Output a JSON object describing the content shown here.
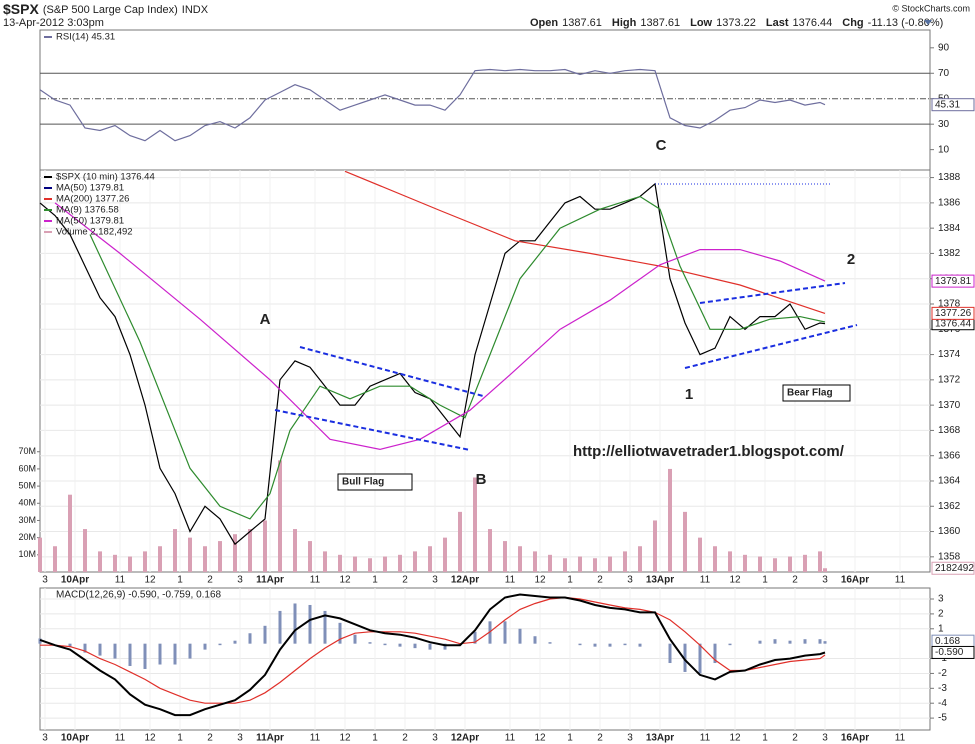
{
  "header": {
    "symbol": "$SPX",
    "name": "(S&P 500 Large Cap Index)",
    "exchange": "INDX",
    "date": "13-Apr-2012 3:03pm",
    "source": "© StockCharts.com",
    "quote": [
      {
        "label": "Open",
        "value": "1387.61"
      },
      {
        "label": "High",
        "value": "1387.61"
      },
      {
        "label": "Low",
        "value": "1373.22"
      },
      {
        "label": "Last",
        "value": "1376.44"
      },
      {
        "label": "Chg",
        "value": "-11.13 (-0.80%)"
      }
    ]
  },
  "chart_data": [
    {
      "type": "line",
      "xlim": [
        0,
        178
      ],
      "ylim": [
        -6,
        104
      ],
      "yticks": [
        10,
        30,
        50,
        70,
        90
      ],
      "levels": [
        70,
        50,
        30
      ],
      "x": [
        0,
        3,
        6,
        9,
        12,
        15,
        18,
        21,
        24,
        27,
        30,
        33,
        36,
        39,
        42,
        45,
        48,
        51,
        54,
        57,
        60,
        63,
        66,
        69,
        72,
        75,
        78,
        81,
        84,
        87,
        90,
        93,
        96,
        99,
        102,
        105,
        108,
        111,
        114,
        117,
        120,
        123,
        126,
        129,
        132,
        135,
        138,
        141,
        144,
        147,
        150,
        153,
        156,
        157
      ],
      "series": [
        {
          "name": "RSI(14)",
          "legend": "RSI(14) 45.31",
          "color": "#6e6e9e",
          "tag": true,
          "values": [
            57,
            49,
            45,
            27,
            25,
            29,
            21,
            17,
            25,
            17,
            21,
            29,
            32,
            27,
            35,
            49,
            55,
            61,
            57,
            49,
            41,
            45,
            49,
            53,
            49,
            45,
            45,
            41,
            53,
            72,
            73,
            72,
            73,
            72,
            72,
            73,
            69,
            72,
            70,
            72,
            73,
            72,
            35,
            29,
            27,
            33,
            41,
            43,
            49,
            47,
            49,
            45,
            47,
            45.31
          ]
        }
      ]
    },
    {
      "type": "line",
      "xlim": [
        0,
        178
      ],
      "ylim": [
        1356.8,
        1388.6
      ],
      "grid": true,
      "yticks": [
        1358,
        1360,
        1362,
        1364,
        1366,
        1368,
        1370,
        1372,
        1374,
        1376,
        1378,
        1380,
        1382,
        1384,
        1386,
        1388
      ],
      "y2lim": [
        0,
        234000000
      ],
      "y2ticks": [
        {
          "value": 10000000,
          "label": "10M"
        },
        {
          "value": 20000000,
          "label": "20M"
        },
        {
          "value": 30000000,
          "label": "30M"
        },
        {
          "value": 40000000,
          "label": "40M"
        },
        {
          "value": 50000000,
          "label": "50M"
        },
        {
          "value": 60000000,
          "label": "60M"
        },
        {
          "value": 70000000,
          "label": "70M"
        }
      ],
      "xticks": [
        {
          "value": 1,
          "label": "3"
        },
        {
          "value": 7,
          "label": "10Apr"
        },
        {
          "value": 16,
          "label": "11"
        },
        {
          "value": 22,
          "label": "12"
        },
        {
          "value": 28,
          "label": "1"
        },
        {
          "value": 34,
          "label": "2"
        },
        {
          "value": 40,
          "label": "3"
        },
        {
          "value": 46,
          "label": "11Apr"
        },
        {
          "value": 55,
          "label": "11"
        },
        {
          "value": 61,
          "label": "12"
        },
        {
          "value": 67,
          "label": "1"
        },
        {
          "value": 73,
          "label": "2"
        },
        {
          "value": 79,
          "label": "3"
        },
        {
          "value": 85,
          "label": "12Apr"
        },
        {
          "value": 94,
          "label": "11"
        },
        {
          "value": 100,
          "label": "12"
        },
        {
          "value": 106,
          "label": "1"
        },
        {
          "value": 112,
          "label": "2"
        },
        {
          "value": 118,
          "label": "3"
        },
        {
          "value": 124,
          "label": "13Apr"
        },
        {
          "value": 133,
          "label": "11"
        },
        {
          "value": 139,
          "label": "12"
        },
        {
          "value": 145,
          "label": "1"
        },
        {
          "value": 151,
          "label": "2"
        },
        {
          "value": 157,
          "label": "3"
        },
        {
          "value": 163,
          "label": "16Apr"
        },
        {
          "value": 172,
          "label": "11"
        }
      ],
      "annotations": [
        "A",
        "B",
        "C",
        "1",
        "2",
        "Bull Flag",
        "Bear Flag",
        "http://elliotwavetrader1.blogspot.com/"
      ],
      "series": [
        {
          "name": "$SPX (10 min)",
          "legend": "$SPX (10 min) 1376.44",
          "color": "#000000",
          "tag": true,
          "x": [
            0,
            3,
            6,
            9,
            12,
            15,
            18,
            21,
            24,
            27,
            30,
            33,
            36,
            39,
            42,
            45,
            48,
            51,
            54,
            57,
            60,
            63,
            66,
            69,
            72,
            75,
            78,
            81,
            84,
            87,
            90,
            93,
            96,
            99,
            102,
            105,
            108,
            111,
            114,
            117,
            120,
            123,
            126,
            129,
            132,
            135,
            138,
            141,
            144,
            147,
            150,
            153,
            156,
            157
          ],
          "values": [
            1386,
            1385,
            1383.5,
            1381,
            1378.5,
            1377,
            1374,
            1370,
            1365,
            1363,
            1360,
            1362,
            1361,
            1359,
            1360,
            1361,
            1372,
            1373.5,
            1373,
            1371.5,
            1370,
            1370,
            1371.5,
            1372,
            1372.5,
            1371,
            1370.5,
            1369,
            1367.5,
            1374,
            1378,
            1382,
            1383,
            1383,
            1384.5,
            1386,
            1386.5,
            1385.5,
            1385.5,
            1386,
            1386.5,
            1387.5,
            1380,
            1376.5,
            1374,
            1374.5,
            1377,
            1376,
            1377,
            1377,
            1378,
            1376,
            1376.5,
            1376.44
          ]
        },
        {
          "name": "MA(50)",
          "legend": "MA(50) 1379.81",
          "color": "#000080"
        },
        {
          "name": "MA(200)",
          "legend": "MA(200) 1377.26",
          "color": "#e0302a",
          "tag": true,
          "x": [
            61,
            80,
            95,
            110,
            124,
            140,
            157
          ],
          "values": [
            1388.5,
            1385.4,
            1383,
            1382,
            1381,
            1379.5,
            1377.26
          ]
        },
        {
          "name": "MA(9)",
          "legend": "MA(9) 1376.58",
          "color": "#2e8b2e",
          "x": [
            10,
            20,
            30,
            36,
            42,
            46,
            50,
            56,
            62,
            68,
            74,
            80,
            85,
            90,
            96,
            104,
            112,
            120,
            124,
            128,
            134,
            140,
            146,
            152,
            157
          ],
          "values": [
            1383.5,
            1375,
            1365,
            1362,
            1361,
            1363,
            1368,
            1371.5,
            1370.5,
            1371.5,
            1371.5,
            1370,
            1369,
            1374,
            1380,
            1384,
            1385.5,
            1386.5,
            1385.5,
            1381,
            1376,
            1376,
            1376.8,
            1377,
            1376.58
          ]
        },
        {
          "name": "MA(50)",
          "legend": "MA(50) 1379.81",
          "color": "#cc22cc",
          "tag": true,
          "x": [
            3,
            16,
            32,
            46,
            58,
            68,
            76,
            86,
            94,
            104,
            114,
            124,
            132,
            140,
            148,
            157
          ],
          "values": [
            1386,
            1382,
            1376.8,
            1372,
            1367.3,
            1366.5,
            1367.3,
            1369.6,
            1372.4,
            1376,
            1378.3,
            1381.1,
            1382.3,
            1382.3,
            1381.4,
            1379.81
          ]
        },
        {
          "name": "Volume",
          "legend": "Volume 2,182,492",
          "color": "#d9a0b4",
          "kind": "bar",
          "axis": "y2",
          "tag": true,
          "x": [
            0,
            3,
            6,
            9,
            12,
            15,
            18,
            21,
            24,
            27,
            30,
            33,
            36,
            39,
            42,
            45,
            48,
            51,
            54,
            57,
            60,
            63,
            66,
            69,
            72,
            75,
            78,
            81,
            84,
            87,
            90,
            93,
            96,
            99,
            102,
            105,
            108,
            111,
            114,
            117,
            120,
            123,
            126,
            129,
            132,
            135,
            138,
            141,
            144,
            147,
            150,
            153,
            156,
            157
          ],
          "values": [
            20000000,
            15000000,
            45000000,
            25000000,
            12000000,
            10000000,
            9000000,
            12000000,
            15000000,
            25000000,
            20000000,
            15000000,
            18000000,
            22000000,
            25000000,
            30000000,
            65000000,
            25000000,
            18000000,
            12000000,
            10000000,
            9000000,
            8000000,
            9000000,
            10000000,
            12000000,
            15000000,
            20000000,
            35000000,
            55000000,
            25000000,
            18000000,
            15000000,
            12000000,
            10000000,
            8000000,
            9000000,
            8000000,
            9000000,
            12000000,
            15000000,
            30000000,
            60000000,
            35000000,
            20000000,
            15000000,
            12000000,
            10000000,
            9000000,
            8000000,
            9000000,
            10000000,
            12000000,
            2182492
          ]
        }
      ]
    },
    {
      "type": "line",
      "xlim": [
        0,
        178
      ],
      "ylim": [
        -5.8,
        3.74
      ],
      "grid": true,
      "yticks": [
        3,
        2,
        1,
        -1,
        -2,
        -3,
        -4,
        -5
      ],
      "xticks": [
        {
          "value": 1,
          "label": "3"
        },
        {
          "value": 7,
          "label": "10Apr"
        },
        {
          "value": 16,
          "label": "11"
        },
        {
          "value": 22,
          "label": "12"
        },
        {
          "value": 28,
          "label": "1"
        },
        {
          "value": 34,
          "label": "2"
        },
        {
          "value": 40,
          "label": "3"
        },
        {
          "value": 46,
          "label": "11Apr"
        },
        {
          "value": 55,
          "label": "11"
        },
        {
          "value": 61,
          "label": "12"
        },
        {
          "value": 67,
          "label": "1"
        },
        {
          "value": 73,
          "label": "2"
        },
        {
          "value": 79,
          "label": "3"
        },
        {
          "value": 85,
          "label": "12Apr"
        },
        {
          "value": 94,
          "label": "11"
        },
        {
          "value": 100,
          "label": "12"
        },
        {
          "value": 106,
          "label": "1"
        },
        {
          "value": 112,
          "label": "2"
        },
        {
          "value": 118,
          "label": "3"
        },
        {
          "value": 124,
          "label": "13Apr"
        },
        {
          "value": 133,
          "label": "11"
        },
        {
          "value": 139,
          "label": "12"
        },
        {
          "value": 145,
          "label": "1"
        },
        {
          "value": 151,
          "label": "2"
        },
        {
          "value": 157,
          "label": "3"
        },
        {
          "value": 163,
          "label": "16Apr"
        },
        {
          "value": 172,
          "label": "11"
        }
      ],
      "legend": "MACD(12,26,9) -0.590, -0.759, 0.168",
      "x": [
        0,
        3,
        6,
        9,
        12,
        15,
        18,
        21,
        24,
        27,
        30,
        33,
        36,
        39,
        42,
        45,
        48,
        51,
        54,
        57,
        60,
        63,
        66,
        69,
        72,
        75,
        78,
        81,
        84,
        87,
        90,
        93,
        96,
        99,
        102,
        105,
        108,
        111,
        114,
        117,
        120,
        123,
        126,
        129,
        132,
        135,
        138,
        141,
        144,
        147,
        150,
        153,
        156,
        157
      ],
      "series": [
        {
          "name": "Histogram",
          "color": "#7f8fb8",
          "kind": "hist",
          "tag": true,
          "values": [
            0.35,
            0,
            -0.2,
            -0.6,
            -0.8,
            -1.0,
            -1.5,
            -1.7,
            -1.4,
            -1.4,
            -1.0,
            -0.4,
            -0.1,
            0.2,
            0.7,
            1.2,
            2.2,
            2.7,
            2.6,
            2.2,
            1.4,
            0.6,
            0.1,
            -0.1,
            -0.2,
            -0.3,
            -0.4,
            -0.4,
            -0.1,
            0.8,
            1.5,
            1.5,
            1.0,
            0.5,
            0.1,
            0,
            -0.1,
            -0.2,
            -0.2,
            -0.1,
            -0.2,
            0,
            -1.3,
            -1.9,
            -2.0,
            -1.3,
            -0.1,
            0,
            0.2,
            0.3,
            0.2,
            0.3,
            0.3,
            0.168
          ]
        },
        {
          "name": "Signal",
          "color": "#e0302a",
          "values": [
            -0.1,
            -0.1,
            -0.2,
            -0.5,
            -1.0,
            -1.4,
            -1.9,
            -2.4,
            -3.0,
            -3.4,
            -3.8,
            -4.0,
            -4.0,
            -4.0,
            -3.8,
            -3.3,
            -2.6,
            -1.8,
            -1.0,
            -0.3,
            0.3,
            0.7,
            0.8,
            0.8,
            0.8,
            0.7,
            0.5,
            0.3,
            0,
            0.1,
            0.8,
            1.6,
            2.3,
            2.7,
            3.0,
            3.1,
            3.0,
            2.8,
            2.6,
            2.4,
            2.3,
            2.1,
            1.6,
            0.8,
            -0.1,
            -1.1,
            -1.8,
            -1.8,
            -1.6,
            -1.4,
            -1.2,
            -1.1,
            -1.0,
            -0.759
          ]
        },
        {
          "name": "MACD",
          "color": "#000000",
          "tag_label": "-0.590",
          "values": [
            0.25,
            -0.1,
            -0.4,
            -1.1,
            -1.8,
            -2.4,
            -3.4,
            -4.1,
            -4.4,
            -4.8,
            -4.8,
            -4.4,
            -4.1,
            -3.8,
            -3.1,
            -2.1,
            -0.4,
            0.9,
            1.6,
            1.9,
            1.7,
            1.3,
            0.9,
            0.7,
            0.6,
            0.4,
            0.1,
            -0.1,
            -0.1,
            0.9,
            2.3,
            3.1,
            3.3,
            3.2,
            3.1,
            3.1,
            2.9,
            2.6,
            2.4,
            2.3,
            2.1,
            2.1,
            0.3,
            -1.1,
            -2.1,
            -2.4,
            -1.9,
            -1.8,
            -1.4,
            -1.1,
            -1.0,
            -0.8,
            -0.7,
            -0.59
          ]
        }
      ]
    }
  ]
}
